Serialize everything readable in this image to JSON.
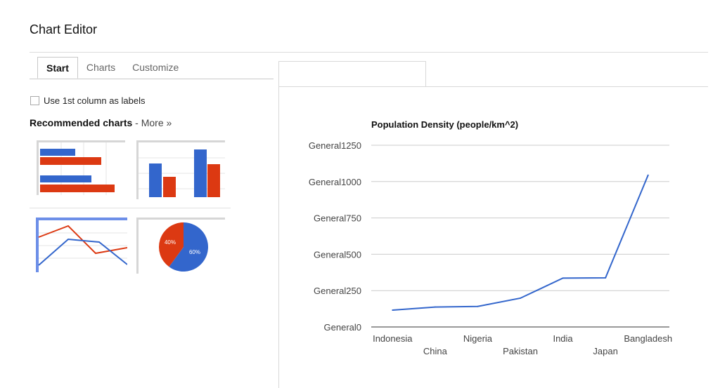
{
  "app": {
    "title": "Chart Editor"
  },
  "tabs": [
    {
      "label": "Start",
      "active": true
    },
    {
      "label": "Charts",
      "active": false
    },
    {
      "label": "Customize",
      "active": false
    }
  ],
  "start": {
    "use_first_column_label": "Use 1st column as labels",
    "use_first_column_checked": false,
    "recommended_label": "Recommended charts",
    "separator": " - ",
    "more_link": "More »"
  },
  "thumbnails": [
    {
      "name": "bar-chart-thumbnail"
    },
    {
      "name": "column-chart-thumbnail"
    },
    {
      "name": "line-chart-thumbnail"
    },
    {
      "name": "pie-chart-thumbnail",
      "labels": [
        "40%",
        "60%"
      ]
    }
  ],
  "colors": {
    "blue": "#3366cc",
    "red": "#dc3912"
  },
  "chart_data": {
    "type": "line",
    "title": "Population Density (people/km^2)",
    "categories": [
      "Indonesia",
      "China",
      "Nigeria",
      "Pakistan",
      "India",
      "Japan",
      "Bangladesh"
    ],
    "values": [
      116,
      137,
      141,
      198,
      336,
      338,
      1044
    ],
    "y_tick_labels": [
      "General0",
      "General250",
      "General500",
      "General750",
      "General1000",
      "General1250"
    ],
    "ylim": [
      0,
      1250
    ],
    "grid": true,
    "color": "#3366cc"
  }
}
